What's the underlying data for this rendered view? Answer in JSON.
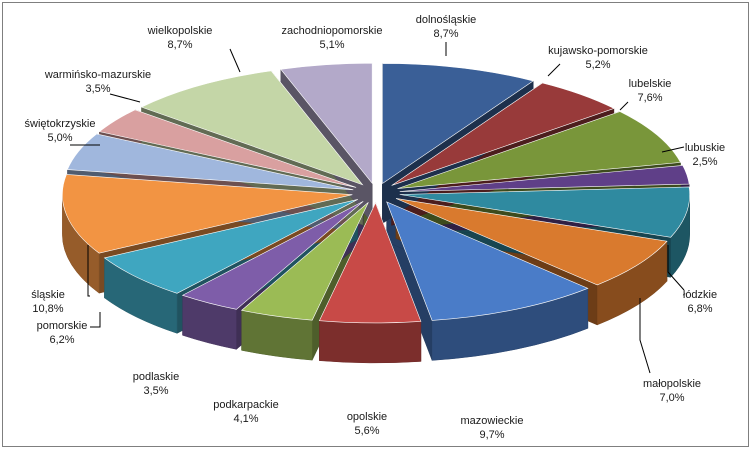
{
  "chart_data": {
    "type": "pie",
    "title": "",
    "legend": "none",
    "style": "3d-exploded",
    "categories": [
      "dolnośląskie",
      "kujawsko-pomorskie",
      "lubelskie",
      "lubuskie",
      "łódzkie",
      "małopolskie",
      "mazowieckie",
      "opolskie",
      "podkarpackie",
      "podlaskie",
      "pomorskie",
      "śląskie",
      "świętokrzyskie",
      "warmińsko-mazurskie",
      "wielkopolskie",
      "zachodniopomorskie"
    ],
    "values": [
      8.7,
      5.2,
      7.6,
      2.5,
      6.8,
      7.0,
      9.7,
      5.6,
      4.1,
      3.5,
      6.2,
      10.8,
      5.0,
      3.5,
      8.7,
      5.1
    ],
    "value_labels": [
      "8,7%",
      "5,2%",
      "7,6%",
      "2,5%",
      "6,8%",
      "7,0%",
      "9,7%",
      "5,6%",
      "4,1%",
      "3,5%",
      "6,2%",
      "10,8%",
      "5,0%",
      "3,5%",
      "8,7%",
      "5,1%"
    ],
    "colors": [
      "#3a5f97",
      "#983a3a",
      "#79963a",
      "#5f3f88",
      "#2f8aa0",
      "#d97a2e",
      "#4a7cc8",
      "#c84a47",
      "#9bbb55",
      "#7e5da9",
      "#3fa6c0",
      "#f29443",
      "#a0b7dd",
      "#d9a0a0",
      "#c4d6a7",
      "#b3a9c9"
    ]
  }
}
